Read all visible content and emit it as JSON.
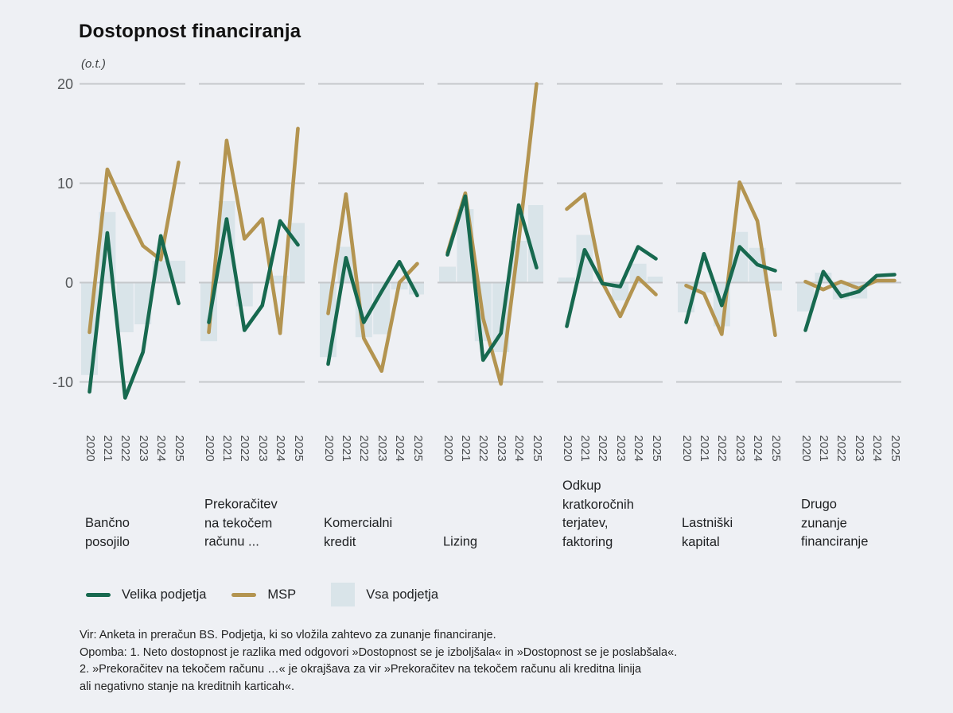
{
  "title": "Dostopnost financiranja",
  "y_axis": {
    "unit_label": "(o.t.)",
    "ticks": [
      20,
      10,
      0,
      -10
    ]
  },
  "legend": {
    "velika_label": "Velika podjetja",
    "msp_label": "MSP",
    "vsa_label": "Vsa podjetja"
  },
  "colors": {
    "velika_line": "#17694f",
    "msp_line": "#b39450",
    "vsa_bar": "#d9e4e9",
    "gridline": "#c5c8cb",
    "background": "#eef0f4"
  },
  "footnotes": "Vir: Anketa in preračun BS. Podjetja, ki so vložila zahtevo za zunanje financiranje.\nOpomba: 1. Neto dostopnost je razlika med odgovori »Dostopnost se je izboljšala« in »Dostopnost se je poslabšala«.\n2. »Prekoračitev na tekočem računu …« je okrajšava za vir »Prekoračitev na tekočem računu ali kreditna linija\n ali negativno stanje na kreditnih karticah«.",
  "chart_data": {
    "type": "bar",
    "subtype": "multi-panel bars with two line series overlaid",
    "title": "Dostopnost financiranja",
    "ylabel": "(o.t.)",
    "unit": "odstotne točke (o.t.)",
    "ylim": [
      -12.6,
      20
    ],
    "gridlines": [
      20,
      10,
      0,
      -10
    ],
    "grid": "horizontal only",
    "legend_position": "bottom",
    "years": [
      "2020",
      "2021",
      "2022",
      "2023",
      "2024",
      "2025"
    ],
    "series_names": [
      "Velika podjetja",
      "MSP",
      "Vsa podjetja"
    ],
    "panels": [
      {
        "label": "Bančno\nposojilo",
        "velika_podjetja": [
          -11.0,
          5.0,
          -11.6,
          -7.0,
          4.7,
          -2.1
        ],
        "msp": [
          -5.0,
          11.4,
          7.4,
          3.7,
          2.3,
          12.1
        ],
        "vsa_podjetja": [
          -9.3,
          7.1,
          -5.0,
          -4.2,
          2.2,
          2.2
        ]
      },
      {
        "label": "Prekoračitev\nna tekočem\nračunu ...",
        "velika_podjetja": [
          -4.0,
          6.4,
          -4.8,
          -2.3,
          6.2,
          3.8
        ],
        "msp": [
          -5.0,
          14.3,
          4.4,
          6.4,
          -5.1,
          15.5
        ],
        "vsa_podjetja": [
          -5.9,
          8.2,
          -2.4,
          0,
          0.7,
          6.0
        ]
      },
      {
        "label": "Komercialni\nkredit",
        "velika_podjetja": [
          -8.2,
          2.5,
          -4.0,
          -0.9,
          2.1,
          -1.3
        ],
        "msp": [
          -3.1,
          8.9,
          -5.6,
          -8.9,
          0,
          1.9
        ],
        "vsa_podjetja": [
          -7.5,
          3.6,
          -5.5,
          -5.2,
          -0.7,
          -1.2
        ]
      },
      {
        "label": "Lizing",
        "velika_podjetja": [
          2.8,
          8.7,
          -7.8,
          -5.1,
          7.8,
          1.5
        ],
        "msp": [
          3.0,
          9.0,
          -3.6,
          -10.2,
          4.2,
          20.0
        ],
        "vsa_podjetja": [
          1.6,
          7.4,
          -5.9,
          -7.0,
          4.2,
          7.8
        ]
      },
      {
        "label": "Odkup\nkratkoročnih\nterjatev,\nfaktoring",
        "velika_podjetja": [
          -4.4,
          3.3,
          -0.1,
          -0.4,
          3.6,
          2.4
        ],
        "msp": [
          7.4,
          8.9,
          0,
          -3.4,
          0.5,
          -1.2
        ],
        "vsa_podjetja": [
          0.5,
          4.8,
          0,
          -1.8,
          1.9,
          0.6
        ]
      },
      {
        "label": "Lastniški\nkapital",
        "velika_podjetja": [
          -4.0,
          2.9,
          -2.3,
          3.6,
          1.8,
          1.2
        ],
        "msp": [
          -0.3,
          -1.1,
          -5.2,
          10.1,
          6.2,
          -5.3
        ],
        "vsa_podjetja": [
          -3.0,
          -1.0,
          -4.4,
          5.1,
          3.5,
          -0.8
        ]
      },
      {
        "label": "Drugo\nzunanje\nfinanciranje",
        "velika_podjetja": [
          -4.8,
          1.1,
          -1.4,
          -0.9,
          0.7,
          0.8
        ],
        "msp": [
          0.1,
          -0.7,
          0.1,
          -0.6,
          0.2,
          0.2
        ],
        "vsa_podjetja": [
          -2.9,
          1.0,
          -1.7,
          -1.6,
          0,
          0
        ]
      }
    ]
  }
}
